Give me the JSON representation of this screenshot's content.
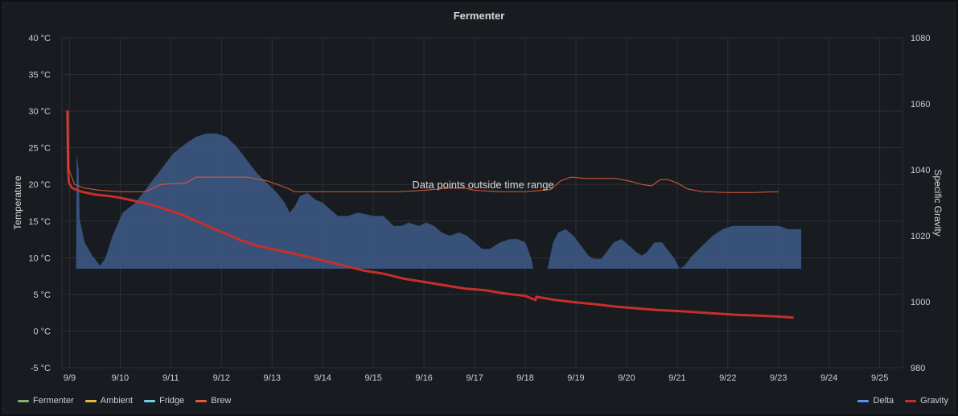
{
  "chart_data": {
    "title": "Fermenter",
    "type": "line",
    "left_axis": {
      "label": "Temperature",
      "unit": "°C",
      "ticks": [
        "40 °C",
        "35 °C",
        "30 °C",
        "25 °C",
        "20 °C",
        "15 °C",
        "10 °C",
        "5 °C",
        "0 °C",
        "-5 °C"
      ],
      "range": [
        -5,
        40
      ]
    },
    "right_axis": {
      "label": "Specific Gravity",
      "ticks": [
        "1080",
        "1060",
        "1040",
        "1020",
        "1000",
        "980"
      ],
      "range": [
        980,
        1080
      ]
    },
    "x_ticks": [
      "9/9",
      "9/10",
      "9/11",
      "9/12",
      "9/13",
      "9/14",
      "9/15",
      "9/16",
      "9/17",
      "9/18",
      "9/19",
      "9/20",
      "9/21",
      "9/22",
      "9/23",
      "9/24",
      "9/25"
    ],
    "x_range": [
      8.85,
      25.45
    ],
    "annotation": "Data points outside time range",
    "series": [
      {
        "name": "Delta",
        "axis": "right",
        "color": "#3d5a8a",
        "kind": "area",
        "baseline": 1010,
        "points": [
          [
            9.13,
            1010
          ],
          [
            9.14,
            1045
          ],
          [
            9.18,
            1040
          ],
          [
            9.2,
            1025
          ],
          [
            9.3,
            1018
          ],
          [
            9.45,
            1014
          ],
          [
            9.6,
            1011
          ],
          [
            9.7,
            1013
          ],
          [
            9.85,
            1020
          ],
          [
            10.05,
            1027
          ],
          [
            10.3,
            1030
          ],
          [
            10.55,
            1035
          ],
          [
            10.8,
            1040
          ],
          [
            11.05,
            1045
          ],
          [
            11.3,
            1048
          ],
          [
            11.5,
            1050
          ],
          [
            11.7,
            1051
          ],
          [
            11.9,
            1051
          ],
          [
            12.1,
            1050
          ],
          [
            12.3,
            1047
          ],
          [
            12.5,
            1043
          ],
          [
            12.7,
            1039
          ],
          [
            12.9,
            1036
          ],
          [
            13.1,
            1033
          ],
          [
            13.25,
            1030
          ],
          [
            13.35,
            1027
          ],
          [
            13.45,
            1029
          ],
          [
            13.55,
            1032
          ],
          [
            13.7,
            1033
          ],
          [
            13.85,
            1031
          ],
          [
            14.0,
            1030
          ],
          [
            14.15,
            1028
          ],
          [
            14.3,
            1026
          ],
          [
            14.5,
            1026
          ],
          [
            14.7,
            1027
          ],
          [
            15.0,
            1026
          ],
          [
            15.2,
            1026
          ],
          [
            15.4,
            1023
          ],
          [
            15.55,
            1023
          ],
          [
            15.7,
            1024
          ],
          [
            15.9,
            1023
          ],
          [
            16.05,
            1024
          ],
          [
            16.2,
            1023
          ],
          [
            16.35,
            1021
          ],
          [
            16.5,
            1020
          ],
          [
            16.7,
            1021
          ],
          [
            16.85,
            1020
          ],
          [
            17.0,
            1018
          ],
          [
            17.15,
            1016
          ],
          [
            17.3,
            1016
          ],
          [
            17.5,
            1018
          ],
          [
            17.7,
            1019
          ],
          [
            17.85,
            1019
          ],
          [
            18.0,
            1018
          ],
          [
            18.05,
            1016
          ],
          [
            18.12,
            1013
          ],
          [
            18.16,
            1010
          ]
        ],
        "points_b": [
          [
            18.44,
            1010
          ],
          [
            18.55,
            1018
          ],
          [
            18.65,
            1021
          ],
          [
            18.8,
            1022
          ],
          [
            18.95,
            1020
          ],
          [
            19.1,
            1017
          ],
          [
            19.25,
            1014
          ],
          [
            19.35,
            1013
          ],
          [
            19.5,
            1013
          ],
          [
            19.6,
            1015
          ],
          [
            19.75,
            1018
          ],
          [
            19.9,
            1019
          ],
          [
            20.05,
            1017
          ],
          [
            20.2,
            1015
          ],
          [
            20.3,
            1014
          ],
          [
            20.4,
            1015
          ],
          [
            20.55,
            1018
          ],
          [
            20.7,
            1018
          ],
          [
            20.85,
            1015
          ],
          [
            20.95,
            1013
          ],
          [
            21.05,
            1010
          ],
          [
            21.15,
            1011
          ],
          [
            21.3,
            1014
          ],
          [
            21.5,
            1017
          ],
          [
            21.7,
            1020
          ],
          [
            21.9,
            1022
          ],
          [
            22.1,
            1023
          ],
          [
            22.3,
            1023
          ],
          [
            22.5,
            1023
          ],
          [
            22.7,
            1023
          ],
          [
            23.0,
            1023
          ],
          [
            23.2,
            1022
          ],
          [
            23.45,
            1022
          ],
          [
            23.45,
            1010
          ]
        ]
      },
      {
        "name": "Gravity",
        "axis": "right",
        "color": "#c4302b",
        "kind": "line",
        "width": 3,
        "points": [
          [
            8.96,
            1058
          ],
          [
            8.97,
            1040
          ],
          [
            8.99,
            1036
          ],
          [
            9.05,
            1034.5
          ],
          [
            9.2,
            1033.5
          ],
          [
            9.5,
            1032.5
          ],
          [
            9.8,
            1032
          ],
          [
            10.0,
            1031.5
          ],
          [
            10.3,
            1030.5
          ],
          [
            10.6,
            1029.5
          ],
          [
            10.9,
            1028
          ],
          [
            11.2,
            1026.5
          ],
          [
            11.5,
            1024.5
          ],
          [
            11.8,
            1022.5
          ],
          [
            12.1,
            1020.5
          ],
          [
            12.4,
            1018.5
          ],
          [
            12.7,
            1017
          ],
          [
            13.0,
            1016
          ],
          [
            13.3,
            1015
          ],
          [
            13.6,
            1014
          ],
          [
            14.0,
            1012.5
          ],
          [
            14.4,
            1011
          ],
          [
            14.8,
            1009.5
          ],
          [
            15.2,
            1008.5
          ],
          [
            15.6,
            1007
          ],
          [
            16.0,
            1006
          ],
          [
            16.4,
            1005
          ],
          [
            16.8,
            1004
          ],
          [
            17.2,
            1003.5
          ],
          [
            17.6,
            1002.5
          ],
          [
            18.0,
            1001.8
          ],
          [
            18.2,
            1000.5
          ],
          [
            18.22,
            1001.5
          ],
          [
            18.6,
            1000.5
          ],
          [
            19.0,
            999.8
          ],
          [
            19.4,
            999.2
          ],
          [
            19.8,
            998.5
          ],
          [
            20.2,
            998
          ],
          [
            20.6,
            997.5
          ],
          [
            21.0,
            997.2
          ],
          [
            21.4,
            996.8
          ],
          [
            21.8,
            996.4
          ],
          [
            22.2,
            996
          ],
          [
            22.6,
            995.8
          ],
          [
            23.0,
            995.5
          ],
          [
            23.3,
            995.2
          ]
        ]
      },
      {
        "name": "Brew",
        "axis": "left",
        "color": "#e55a3a",
        "kind": "line",
        "width": 1,
        "points": [
          [
            8.96,
            30
          ],
          [
            8.97,
            25
          ],
          [
            8.99,
            22
          ],
          [
            9.1,
            20
          ],
          [
            9.3,
            19.5
          ],
          [
            9.6,
            19.2
          ],
          [
            10.0,
            19
          ],
          [
            10.5,
            19
          ],
          [
            10.8,
            20
          ],
          [
            11.3,
            20.2
          ],
          [
            11.5,
            21
          ],
          [
            12.0,
            21
          ],
          [
            12.5,
            21
          ],
          [
            12.9,
            20.5
          ],
          [
            13.1,
            20
          ],
          [
            13.3,
            19.5
          ],
          [
            13.45,
            19
          ],
          [
            14.0,
            19
          ],
          [
            14.5,
            19
          ],
          [
            15.0,
            19
          ],
          [
            15.5,
            19
          ],
          [
            16.0,
            19.2
          ],
          [
            16.5,
            19.5
          ],
          [
            16.8,
            19.5
          ],
          [
            17.0,
            19.2
          ],
          [
            17.5,
            19
          ],
          [
            18.0,
            19
          ],
          [
            18.5,
            19.3
          ],
          [
            18.7,
            20.5
          ],
          [
            18.9,
            21
          ],
          [
            19.2,
            20.8
          ],
          [
            19.5,
            20.8
          ],
          [
            19.8,
            20.8
          ],
          [
            20.1,
            20.4
          ],
          [
            20.3,
            20
          ],
          [
            20.5,
            19.8
          ],
          [
            20.65,
            20.6
          ],
          [
            20.8,
            20.7
          ],
          [
            21.0,
            20.2
          ],
          [
            21.2,
            19.4
          ],
          [
            21.5,
            19
          ],
          [
            22.0,
            18.9
          ],
          [
            22.5,
            18.9
          ],
          [
            23.0,
            19
          ]
        ]
      }
    ],
    "legend_left": [
      {
        "label": "Fermenter",
        "color": "#7eb26d"
      },
      {
        "label": "Ambient",
        "color": "#eab839"
      },
      {
        "label": "Fridge",
        "color": "#6ed0e0"
      },
      {
        "label": "Brew",
        "color": "#e55a3a"
      }
    ],
    "legend_right": [
      {
        "label": "Delta",
        "color": "#5794f2"
      },
      {
        "label": "Gravity",
        "color": "#c4302b"
      }
    ]
  }
}
